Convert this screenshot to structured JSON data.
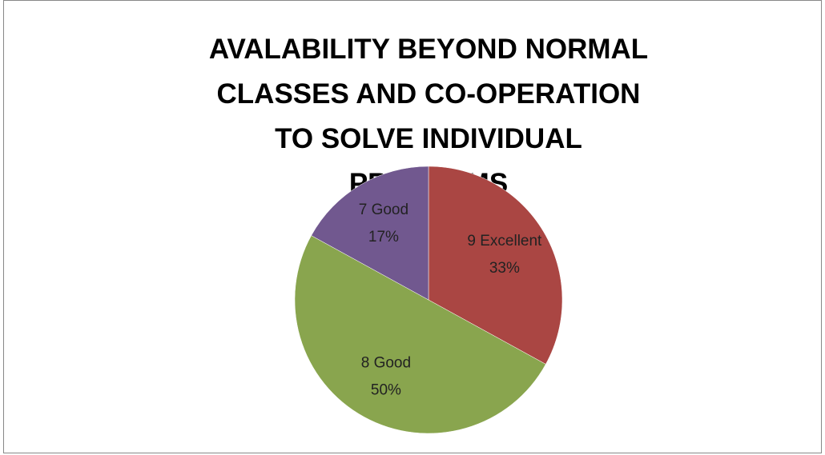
{
  "chart_data": {
    "type": "pie",
    "title": "AVALABILITY BEYOND NORMAL CLASSES AND CO-OPERATION TO SOLVE INDIVIDUAL PROBLEMS",
    "categories": [
      "9 Excellent",
      "8 Good",
      "7 Good"
    ],
    "values": [
      33,
      50,
      17
    ],
    "value_labels": [
      "33%",
      "50%",
      "17%"
    ],
    "colors": [
      "#aa4643",
      "#89a54e",
      "#71588f"
    ]
  }
}
